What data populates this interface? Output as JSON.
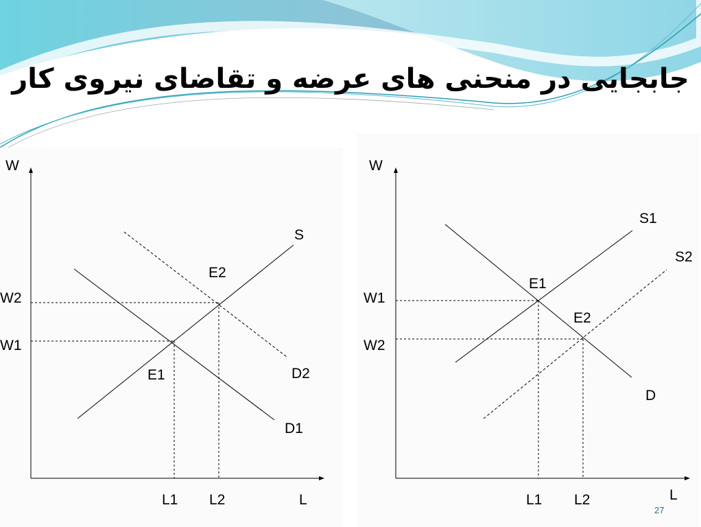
{
  "slide": {
    "title": "جابجایی در منحنی های عرضه و تقاضای نیروی کار",
    "page_number": "27",
    "colors": {
      "wave_dark": "#7fbfd6",
      "wave_light": "#a8dde8",
      "accent": "#3aa6c8"
    }
  },
  "left_diagram": {
    "y_axis": "W",
    "x_axis": "L",
    "w_labels": [
      "W2",
      "W1"
    ],
    "l_labels": [
      "L1",
      "L2"
    ],
    "curves": {
      "supply": "S",
      "demand1": "D1",
      "demand2": "D2"
    },
    "equilibria": [
      "E1",
      "E2"
    ]
  },
  "right_diagram": {
    "y_axis": "W",
    "x_axis": "L",
    "w_labels": [
      "W1",
      "W2"
    ],
    "l_labels": [
      "L1",
      "L2"
    ],
    "curves": {
      "supply1": "S1",
      "supply2": "S2",
      "demand": "D"
    },
    "equilibria": [
      "E1",
      "E2"
    ]
  }
}
